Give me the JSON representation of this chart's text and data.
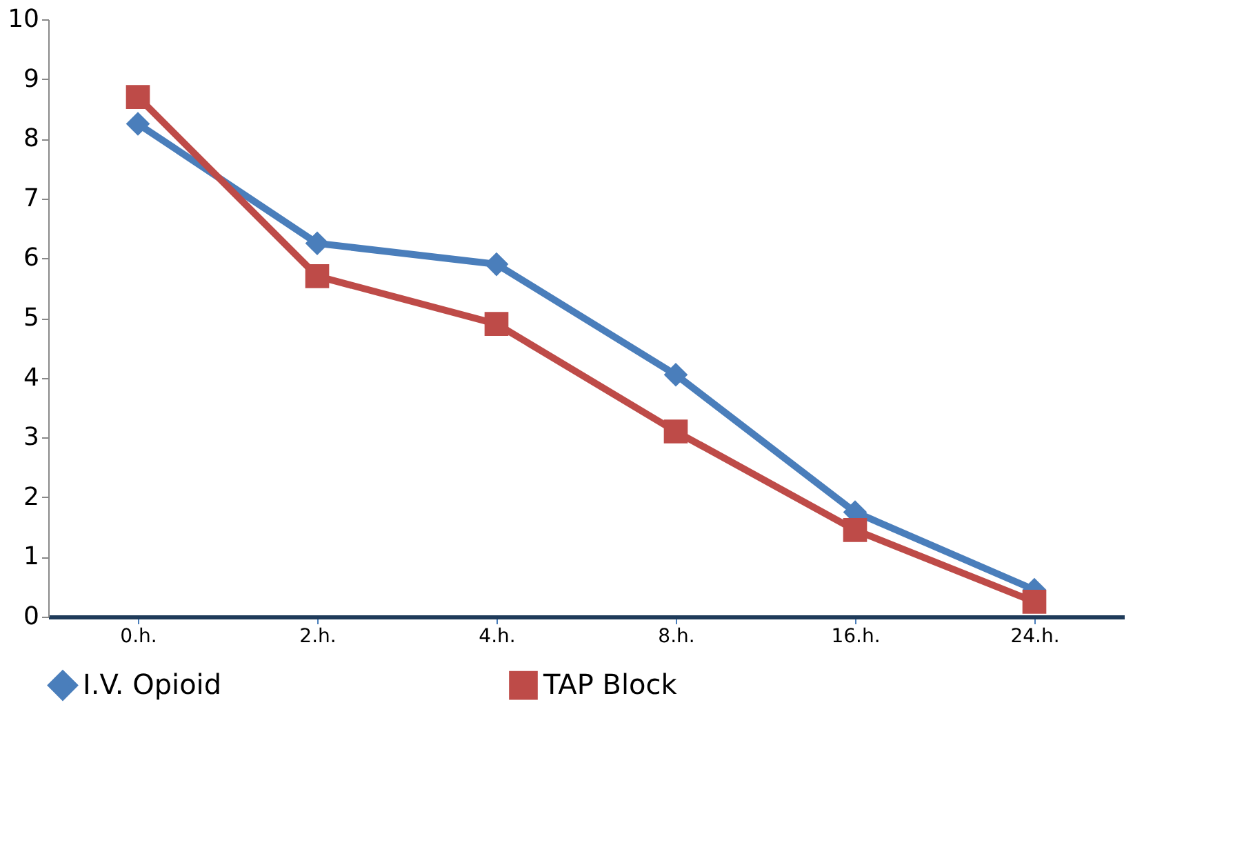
{
  "chart_data": {
    "type": "line",
    "categories": [
      "0.h.",
      "2.h.",
      "4.h.",
      "8.h.",
      "16.h.",
      "24.h."
    ],
    "series": [
      {
        "name": "I.V. Opioid",
        "color": "#4a7ebb",
        "marker": "diamond",
        "values": [
          8.25,
          6.25,
          5.9,
          4.05,
          1.75,
          0.45
        ]
      },
      {
        "name": "TAP Block",
        "color": "#be4b48",
        "marker": "square",
        "values": [
          8.7,
          5.7,
          4.9,
          3.1,
          1.45,
          0.25
        ]
      }
    ],
    "ylim": [
      0,
      10
    ],
    "yticks": [
      0,
      1,
      2,
      3,
      4,
      5,
      6,
      7,
      8,
      9,
      10
    ],
    "grid": false,
    "legend": "bottom",
    "line_style": "solid"
  }
}
